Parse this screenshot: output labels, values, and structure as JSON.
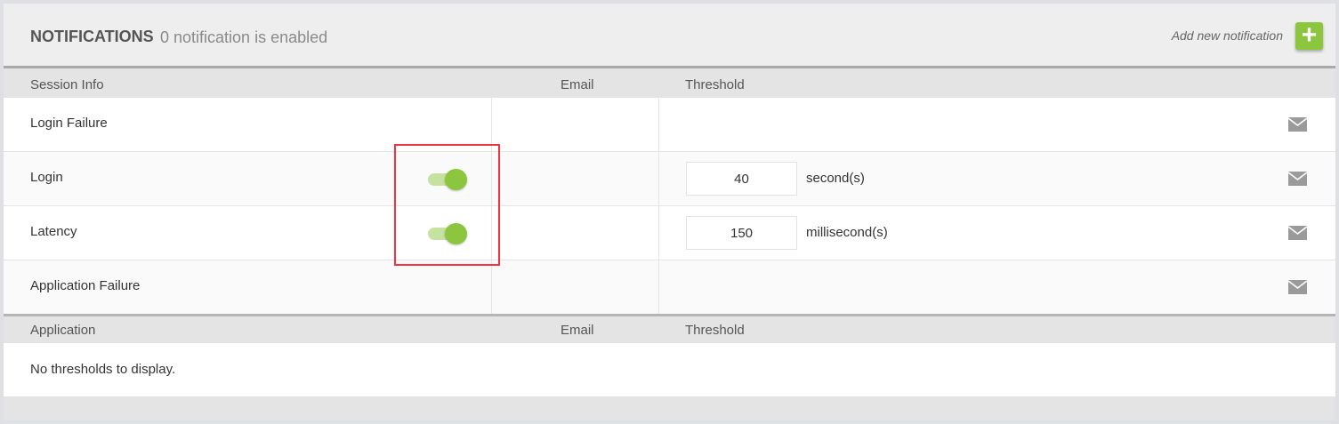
{
  "header": {
    "title": "NOTIFICATIONS",
    "subtitle": "0 notification is enabled",
    "add_label": "Add new notification",
    "add_icon": "plus-icon"
  },
  "session_table": {
    "columns": [
      "Session Info",
      "Email",
      "Threshold"
    ],
    "rows": [
      {
        "name": "Login Failure",
        "toggle": null,
        "threshold": null,
        "unit": null
      },
      {
        "name": "Login",
        "toggle": true,
        "threshold": "40",
        "unit": "second(s)"
      },
      {
        "name": "Latency",
        "toggle": true,
        "threshold": "150",
        "unit": "millisecond(s)"
      },
      {
        "name": "Application Failure",
        "toggle": null,
        "threshold": null,
        "unit": null
      }
    ]
  },
  "application_table": {
    "columns": [
      "Application",
      "Email",
      "Threshold"
    ],
    "empty_text": "No thresholds to display."
  },
  "colors": {
    "accent": "#8cc63f",
    "highlight": "#ef3340"
  }
}
